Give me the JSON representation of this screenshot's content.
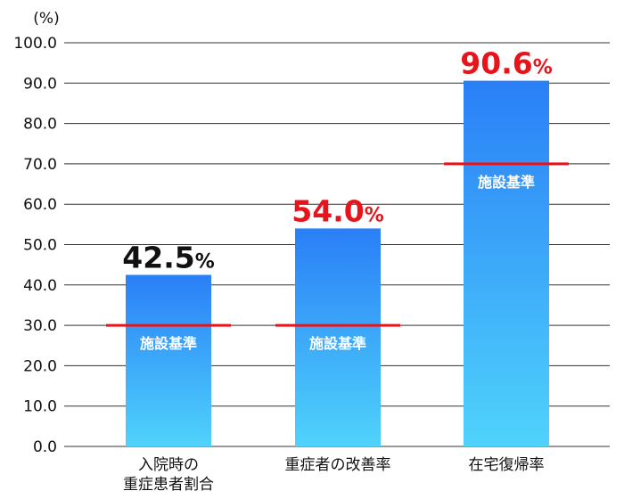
{
  "chart_data": {
    "type": "bar",
    "unit_label": "(%)",
    "categories": [
      [
        "入院時の",
        "重症患者割合"
      ],
      [
        "重症者の改善率"
      ],
      [
        "在宅復帰率"
      ]
    ],
    "values": [
      42.5,
      54.0,
      90.6
    ],
    "value_labels": [
      "42.5",
      "54.0",
      "90.6"
    ],
    "value_suffix": "%",
    "value_label_colors": [
      "#111111",
      "#e8141b",
      "#e8141b"
    ],
    "standard_values": [
      30,
      30,
      70
    ],
    "standard_label": "施設基準",
    "ylim": [
      0,
      100
    ],
    "yticks": [
      0,
      10,
      20,
      30,
      40,
      50,
      60,
      70,
      80,
      90,
      100
    ],
    "ytick_labels": [
      "0.0",
      "10.0",
      "20.0",
      "30.0",
      "40.0",
      "50.0",
      "60.0",
      "70.0",
      "80.0",
      "90.0",
      "100.0"
    ],
    "grid": true,
    "colors": {
      "bar_top": "#2a7ff7",
      "bar_bottom": "#4fd3fb",
      "standard_line": "#e8141b",
      "grid": "#333333"
    }
  }
}
